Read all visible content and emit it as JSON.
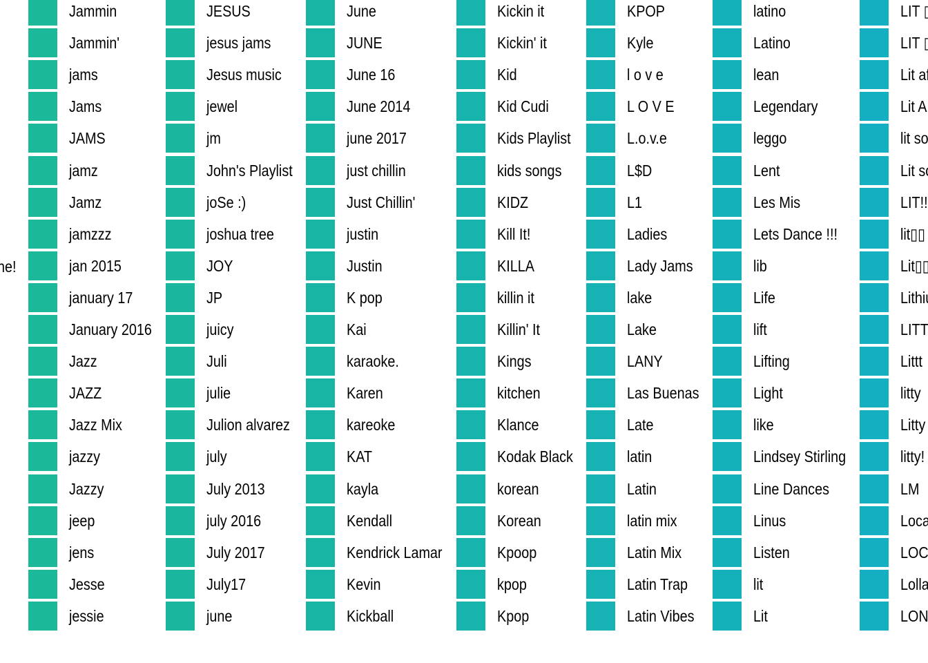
{
  "chart_data": {
    "type": "legend",
    "clipped_left_label": "ne!",
    "columns": [
      {
        "fill": "#1bb89a",
        "labels": [
          "Jammin",
          "Jammin'",
          "jams",
          "Jams",
          "JAMS",
          "jamz",
          "Jamz",
          "jamzzz",
          "jan 2015",
          "january 17",
          "January 2016",
          "Jazz",
          "JAZZ",
          "Jazz Mix",
          "jazzy",
          "Jazzy",
          "jeep",
          "jens",
          "Jesse",
          "jessie"
        ]
      },
      {
        "fill": "#1ab79e",
        "labels": [
          "JESUS",
          "jesus jams",
          "Jesus music",
          "jewel",
          "jm",
          "John's Playlist",
          "joSe :)",
          "joshua tree",
          "JOY",
          "JP",
          "juicy",
          "Juli",
          "julie",
          "Julion alvarez",
          "july",
          "July 2013",
          "july 2016",
          "July 2017",
          "July17",
          "june"
        ]
      },
      {
        "fill": "#18b5a5",
        "labels": [
          "June",
          "JUNE",
          "June 16",
          "June 2014",
          "june 2017",
          "just chillin",
          "Just Chillin'",
          "justin",
          "Justin",
          "K pop",
          "Kai",
          "karaoke.",
          "Karen",
          "kareoke",
          "KAT",
          "kayla",
          "Kendall",
          "Kendrick Lamar",
          "Kevin",
          "Kickball"
        ]
      },
      {
        "fill": "#17b3ad",
        "labels": [
          "Kickin it",
          "Kickin' it",
          "Kid",
          "Kid Cudi",
          "Kids Playlist",
          "kids songs",
          "KIDZ",
          "Kill It!",
          "KILLA",
          "killin it",
          "Killin' It",
          "Kings",
          "kitchen",
          "Klance",
          "Kodak Black",
          "korean",
          "Korean",
          "Kpoop",
          "kpop",
          "Kpop"
        ]
      },
      {
        "fill": "#16b2b4",
        "labels": [
          "KPOP",
          "Kyle",
          "l o v e",
          "L O V E",
          "L.o.v.e",
          "L$D",
          "L1",
          "Ladies",
          "Lady Jams",
          "lake",
          "Lake",
          "LANY",
          "Las Buenas",
          "Late",
          "latin",
          "Latin",
          "latin mix",
          "Latin Mix",
          "Latin Trap",
          "Latin Vibes"
        ]
      },
      {
        "fill": "#15b1bb",
        "labels": [
          "latino",
          "Latino",
          "lean",
          "Legendary",
          "leggo",
          "Lent",
          "Les Mis",
          "Lets Dance !!!",
          "lib",
          "Life",
          "lift",
          "Lifting",
          "Light",
          "like",
          "Lindsey Stirling",
          "Line Dances",
          "Linus",
          "Listen",
          "lit",
          "Lit"
        ]
      },
      {
        "fill": "#15afc2",
        "labels": [
          "LIT ▯",
          "LIT ▯",
          "Lit af",
          "Lit AF",
          "lit songs",
          "Lit songs",
          "LIT!!",
          "lit▯▯",
          "Lit▯▯▯",
          "Lithium",
          "LITT",
          "Littt",
          "litty",
          "Litty",
          "litty!",
          "LM",
          "Local",
          "LOCO",
          "Lolla",
          "LONG"
        ]
      }
    ]
  },
  "colors": {
    "background": "#ffffff",
    "text": "#000000"
  }
}
